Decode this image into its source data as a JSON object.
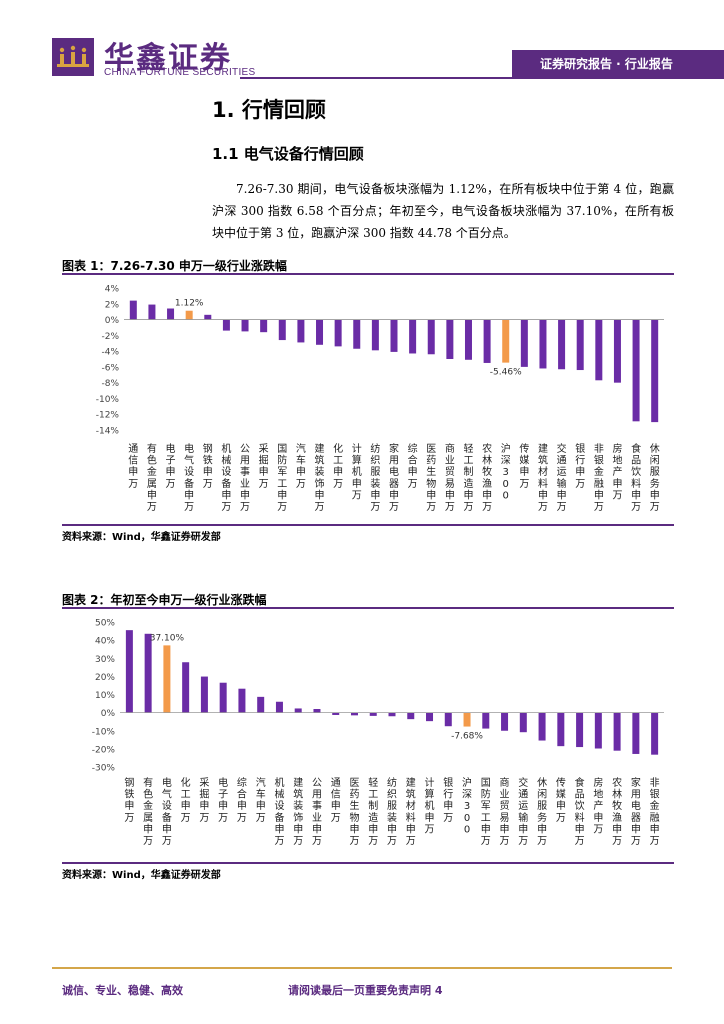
{
  "header": {
    "brand_cn": "华鑫证券",
    "brand_en": "CHINA FORTUNE SECURITIES",
    "report_type": "证券研究报告 · 行业报告",
    "brand_color": "#5b2b80"
  },
  "section": {
    "h1": "1. 行情回顾",
    "h2": "1.1 电气设备行情回顾",
    "paragraph": "7.26-7.30 期间，电气设备板块涨幅为 1.12%，在所有板块中位于第 4 位，跑赢沪深 300 指数 6.58 个百分点；年初至今，电气设备板块涨幅为 37.10%，在所有板块中位于第 3 位，跑赢沪深 300 指数 44.78 个百分点。"
  },
  "figure1": {
    "title": "图表 1：7.26-7.30 申万一级行业涨跌幅",
    "source": "资料来源：Wind，华鑫证券研发部"
  },
  "figure2": {
    "title": "图表 2：年初至今申万一级行业涨跌幅",
    "source": "资料来源：Wind，华鑫证券研发部"
  },
  "chart_data": [
    {
      "type": "bar",
      "ylim": [
        -14,
        4
      ],
      "yticks": [
        4,
        2,
        0,
        -2,
        -4,
        -6,
        -8,
        -10,
        -12,
        -14
      ],
      "tick_suffix": "%",
      "bar_color": "#6a2ca6",
      "highlight_color": "#f39a4a",
      "categories": [
        "通信申万",
        "有色金属申万",
        "电子申万",
        "电气设备申万",
        "钢铁申万",
        "机械设备申万",
        "公用事业申万",
        "采掘申万",
        "国防军工申万",
        "汽车申万",
        "建筑装饰申万",
        "化工申万",
        "计算机申万",
        "纺织服装申万",
        "家用电器申万",
        "综合申万",
        "医药生物申万",
        "商业贸易申万",
        "轻工制造申万",
        "农林牧渔申万",
        "沪深300",
        "传媒申万",
        "建筑材料申万",
        "交通运输申万",
        "银行申万",
        "非银金融申万",
        "房地产申万",
        "食品饮料申万",
        "休闲服务申万"
      ],
      "values": [
        2.4,
        1.9,
        1.4,
        1.12,
        0.6,
        -1.4,
        -1.5,
        -1.6,
        -2.6,
        -2.9,
        -3.2,
        -3.4,
        -3.7,
        -3.9,
        -4.1,
        -4.3,
        -4.4,
        -5.0,
        -5.1,
        -5.5,
        -5.46,
        -6.0,
        -6.2,
        -6.3,
        -6.4,
        -7.7,
        -8.0,
        -12.9,
        -13.0
      ],
      "highlight": [
        3,
        20
      ],
      "data_labels": [
        {
          "index": 3,
          "text": "1.12%"
        },
        {
          "index": 20,
          "text": "-5.46%"
        }
      ]
    },
    {
      "type": "bar",
      "ylim": [
        -30,
        50
      ],
      "yticks": [
        50,
        40,
        30,
        20,
        10,
        0,
        -10,
        -20,
        -30
      ],
      "tick_suffix": "%",
      "bar_color": "#6a2ca6",
      "highlight_color": "#f39a4a",
      "categories": [
        "钢铁申万",
        "有色金属申万",
        "电气设备申万",
        "化工申万",
        "采掘申万",
        "电子申万",
        "综合申万",
        "汽车申万",
        "机械设备申万",
        "建筑装饰申万",
        "公用事业申万",
        "通信申万",
        "医药生物申万",
        "轻工制造申万",
        "纺织服装申万",
        "建筑材料申万",
        "计算机申万",
        "银行申万",
        "沪深300",
        "国防军工申万",
        "商业贸易申万",
        "交通运输申万",
        "休闲服务申万",
        "传媒申万",
        "食品饮料申万",
        "房地产申万",
        "农林牧渔申万",
        "家用电器申万",
        "非银金融申万"
      ],
      "values": [
        45.5,
        43.5,
        37.1,
        27.8,
        19.9,
        16.5,
        13.2,
        8.7,
        6.0,
        2.3,
        2.0,
        -1.3,
        -1.5,
        -1.8,
        -2.0,
        -3.6,
        -4.7,
        -7.5,
        -7.68,
        -8.8,
        -10.0,
        -10.8,
        -15.4,
        -18.5,
        -19.0,
        -19.8,
        -21.0,
        -22.8,
        -23.2
      ],
      "highlight": [
        2,
        18
      ],
      "data_labels": [
        {
          "index": 2,
          "text": "37.10%"
        },
        {
          "index": 18,
          "text": "-7.68%"
        }
      ]
    }
  ],
  "footer": {
    "left": "诚信、专业、稳健、高效",
    "right": "请阅读最后一页重要免责声明 4"
  }
}
